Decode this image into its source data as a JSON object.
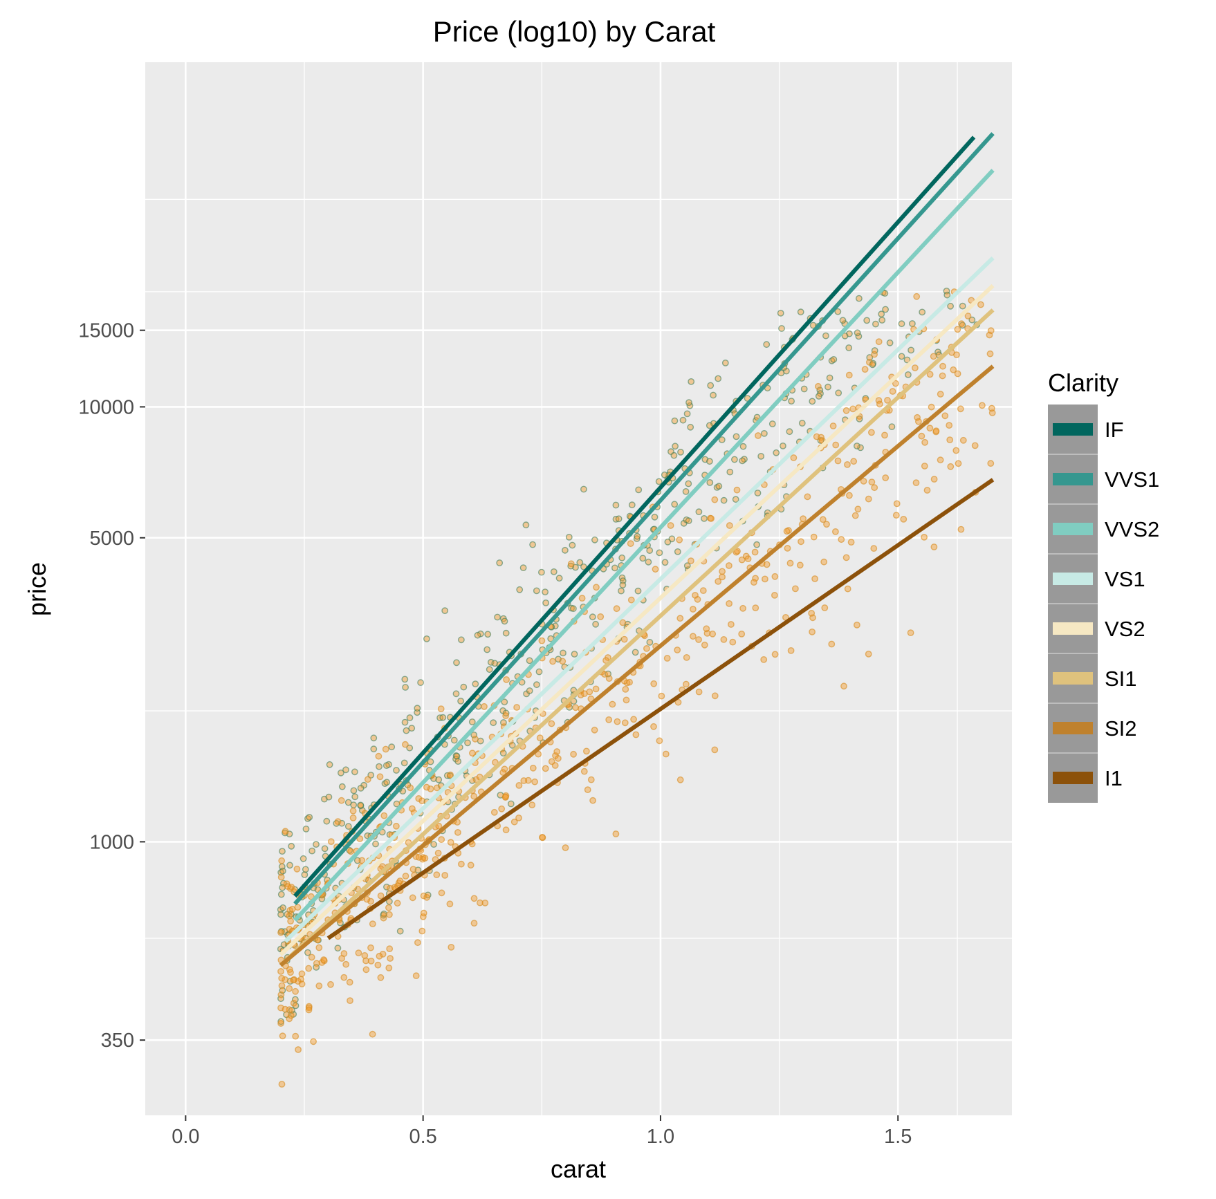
{
  "chart_data": {
    "type": "scatter",
    "title": "Price (log10) by Carat",
    "xlabel": "carat",
    "ylabel": "price",
    "xlim": [
      -0.085,
      1.74
    ],
    "ylim": [
      235,
      62000
    ],
    "y_scale": "log10",
    "x_ticks": [
      0.0,
      0.5,
      1.0,
      1.5
    ],
    "x_tick_labels": [
      "0.0",
      "0.5",
      "1.0",
      "1.5"
    ],
    "y_ticks": [
      350,
      1000,
      5000,
      10000,
      15000
    ],
    "y_tick_labels": [
      "350",
      "1000",
      "5000",
      "10000",
      "15000"
    ],
    "y_minor_ticks": [
      600,
      2000,
      18400,
      30000
    ],
    "x_minor_ticks": [
      0.25,
      0.75,
      1.25,
      1.625
    ],
    "grid": true,
    "legend": {
      "title": "Clarity",
      "position": "right",
      "entries": [
        "IF",
        "VVS1",
        "VVS2",
        "VS1",
        "VS2",
        "SI1",
        "SI2",
        "I1"
      ]
    },
    "series": [
      {
        "name": "IF",
        "color": "#01665E",
        "trend": {
          "x": [
            0.23,
            1.66
          ],
          "y": [
            750,
            41700
          ]
        }
      },
      {
        "name": "VVS1",
        "color": "#35978F",
        "trend": {
          "x": [
            0.23,
            1.7
          ],
          "y": [
            720,
            42500
          ]
        }
      },
      {
        "name": "VVS2",
        "color": "#80CDC1",
        "trend": {
          "x": [
            0.23,
            1.7
          ],
          "y": [
            660,
            35000
          ]
        }
      },
      {
        "name": "VS1",
        "color": "#C7EAE5",
        "trend": {
          "x": [
            0.21,
            1.7
          ],
          "y": [
            590,
            22000
          ]
        }
      },
      {
        "name": "VS2",
        "color": "#F6E8C3",
        "trend": {
          "x": [
            0.2,
            1.7
          ],
          "y": [
            550,
            19000
          ]
        }
      },
      {
        "name": "SI1",
        "color": "#DFC27D",
        "trend": {
          "x": [
            0.2,
            1.7
          ],
          "y": [
            520,
            16700
          ]
        }
      },
      {
        "name": "SI2",
        "color": "#BF812D",
        "trend": {
          "x": [
            0.2,
            1.7
          ],
          "y": [
            520,
            12400
          ]
        }
      },
      {
        "name": "I1",
        "color": "#8C510A",
        "trend": {
          "x": [
            0.3,
            1.7
          ],
          "y": [
            600,
            6800
          ]
        }
      }
    ],
    "point_color_fill": "#F39C2A",
    "point_color_outline": "#3F7F5E",
    "colors": {
      "panel_background": "#EBEBEB",
      "grid": "#FFFFFF",
      "legend_key_background": "#999999"
    }
  }
}
